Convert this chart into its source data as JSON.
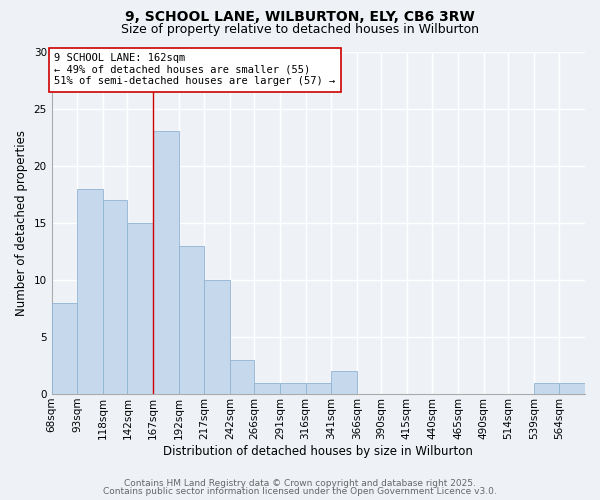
{
  "title1": "9, SCHOOL LANE, WILBURTON, ELY, CB6 3RW",
  "title2": "Size of property relative to detached houses in Wilburton",
  "xlabel": "Distribution of detached houses by size in Wilburton",
  "ylabel": "Number of detached properties",
  "bins": [
    68,
    93,
    118,
    142,
    167,
    192,
    217,
    242,
    266,
    291,
    316,
    341,
    366,
    390,
    415,
    440,
    465,
    490,
    514,
    539,
    564,
    589
  ],
  "bin_labels": [
    "68sqm",
    "93sqm",
    "118sqm",
    "142sqm",
    "167sqm",
    "192sqm",
    "217sqm",
    "242sqm",
    "266sqm",
    "291sqm",
    "316sqm",
    "341sqm",
    "366sqm",
    "390sqm",
    "415sqm",
    "440sqm",
    "465sqm",
    "490sqm",
    "514sqm",
    "539sqm",
    "564sqm"
  ],
  "values": [
    8,
    18,
    17,
    15,
    23,
    13,
    10,
    3,
    1,
    1,
    1,
    2,
    0,
    0,
    0,
    0,
    0,
    0,
    0,
    1,
    1
  ],
  "bar_color": "#c5d8ec",
  "bar_edgecolor": "#8fb4d4",
  "vline_x": 167,
  "vline_color": "#cc0000",
  "annotation_text": "9 SCHOOL LANE: 162sqm\n← 49% of detached houses are smaller (55)\n51% of semi-detached houses are larger (57) →",
  "annotation_box_edgecolor": "#cc0000",
  "annotation_box_facecolor": "#ffffff",
  "ylim": [
    0,
    30
  ],
  "yticks": [
    0,
    5,
    10,
    15,
    20,
    25,
    30
  ],
  "background_color": "#eef2f7",
  "grid_color": "#ffffff",
  "footer1": "Contains HM Land Registry data © Crown copyright and database right 2025.",
  "footer2": "Contains public sector information licensed under the Open Government Licence v3.0.",
  "title_fontsize": 10,
  "subtitle_fontsize": 9,
  "axis_fontsize": 8.5,
  "tick_fontsize": 7.5,
  "annotation_fontsize": 7.5,
  "footer_fontsize": 6.5
}
